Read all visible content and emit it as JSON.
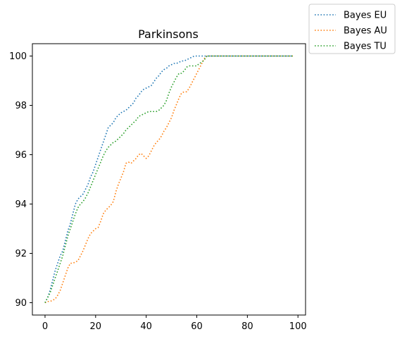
{
  "chart_data": {
    "type": "line",
    "title": "Parkinsons",
    "xlabel": "",
    "ylabel": "",
    "xlim": [
      -5,
      103
    ],
    "ylim": [
      89.5,
      100.5
    ],
    "xticks": [
      0,
      20,
      40,
      60,
      80,
      100
    ],
    "yticks": [
      90,
      92,
      94,
      96,
      98,
      100
    ],
    "grid": false,
    "legend_position": "outside top-right",
    "line_style": "dotted",
    "series": [
      {
        "name": "Bayes EU",
        "color": "#1f77b4",
        "x": [
          0,
          1,
          2,
          3,
          4,
          5,
          6,
          7,
          8,
          9,
          10,
          11,
          12,
          13,
          14,
          15,
          16,
          17,
          18,
          19,
          20,
          21,
          22,
          23,
          24,
          25,
          26,
          27,
          28,
          29,
          30,
          31,
          32,
          33,
          34,
          35,
          36,
          37,
          38,
          39,
          40,
          41,
          42,
          43,
          44,
          45,
          46,
          47,
          48,
          49,
          50,
          51,
          52,
          53,
          54,
          55,
          56,
          57,
          58,
          59,
          60,
          61,
          62,
          63,
          64,
          70,
          80,
          90,
          98
        ],
        "y": [
          90.0,
          90.2,
          90.5,
          90.9,
          91.3,
          91.6,
          91.9,
          92.1,
          92.5,
          92.9,
          93.2,
          93.6,
          94.0,
          94.2,
          94.3,
          94.4,
          94.6,
          94.8,
          95.1,
          95.3,
          95.6,
          95.9,
          96.2,
          96.5,
          96.8,
          97.1,
          97.2,
          97.3,
          97.5,
          97.6,
          97.7,
          97.75,
          97.8,
          97.9,
          98.0,
          98.1,
          98.3,
          98.4,
          98.55,
          98.65,
          98.7,
          98.75,
          98.8,
          98.95,
          99.1,
          99.2,
          99.35,
          99.45,
          99.5,
          99.6,
          99.65,
          99.7,
          99.7,
          99.75,
          99.8,
          99.8,
          99.85,
          99.9,
          99.95,
          100.0,
          100.0,
          100.0,
          100.0,
          100.0,
          100.0,
          100.0,
          100.0,
          100.0,
          100.0
        ]
      },
      {
        "name": "Bayes AU",
        "color": "#ff7f0e",
        "x": [
          0,
          1,
          2,
          3,
          4,
          5,
          6,
          7,
          8,
          9,
          10,
          11,
          12,
          13,
          14,
          15,
          16,
          17,
          18,
          19,
          20,
          21,
          22,
          23,
          24,
          25,
          26,
          27,
          28,
          29,
          30,
          31,
          32,
          33,
          34,
          35,
          36,
          37,
          38,
          39,
          40,
          41,
          42,
          43,
          44,
          45,
          46,
          47,
          48,
          49,
          50,
          51,
          52,
          53,
          54,
          55,
          56,
          57,
          58,
          59,
          60,
          61,
          62,
          63,
          64,
          70,
          80,
          90,
          98
        ],
        "y": [
          90.0,
          90.05,
          90.05,
          90.1,
          90.15,
          90.3,
          90.5,
          90.8,
          91.1,
          91.4,
          91.6,
          91.6,
          91.65,
          91.7,
          91.9,
          92.1,
          92.35,
          92.6,
          92.8,
          92.9,
          93.0,
          93.05,
          93.3,
          93.6,
          93.75,
          93.85,
          93.95,
          94.1,
          94.5,
          94.8,
          95.05,
          95.3,
          95.65,
          95.7,
          95.65,
          95.75,
          95.85,
          96.0,
          96.05,
          95.95,
          95.85,
          95.95,
          96.15,
          96.35,
          96.5,
          96.6,
          96.75,
          96.95,
          97.1,
          97.3,
          97.5,
          97.8,
          98.05,
          98.3,
          98.5,
          98.55,
          98.55,
          98.7,
          98.9,
          99.1,
          99.3,
          99.5,
          99.7,
          99.9,
          100.0,
          100.0,
          100.0,
          100.0,
          100.0
        ]
      },
      {
        "name": "Bayes TU",
        "color": "#2ca02c",
        "x": [
          0,
          1,
          2,
          3,
          4,
          5,
          6,
          7,
          8,
          9,
          10,
          11,
          12,
          13,
          14,
          15,
          16,
          17,
          18,
          19,
          20,
          21,
          22,
          23,
          24,
          25,
          26,
          27,
          28,
          29,
          30,
          31,
          32,
          33,
          34,
          35,
          36,
          37,
          38,
          39,
          40,
          41,
          42,
          43,
          44,
          45,
          46,
          47,
          48,
          49,
          50,
          51,
          52,
          53,
          54,
          55,
          56,
          57,
          58,
          59,
          60,
          61,
          62,
          63,
          64,
          70,
          80,
          90,
          98
        ],
        "y": [
          90.0,
          90.2,
          90.4,
          90.7,
          91.0,
          91.3,
          91.6,
          91.9,
          92.3,
          92.7,
          93.0,
          93.3,
          93.6,
          93.85,
          94.0,
          94.1,
          94.25,
          94.45,
          94.7,
          94.95,
          95.2,
          95.45,
          95.7,
          95.95,
          96.15,
          96.3,
          96.4,
          96.5,
          96.55,
          96.65,
          96.75,
          96.85,
          97.0,
          97.1,
          97.2,
          97.3,
          97.4,
          97.55,
          97.6,
          97.65,
          97.7,
          97.75,
          97.75,
          97.75,
          97.75,
          97.8,
          97.9,
          98.0,
          98.2,
          98.5,
          98.75,
          98.95,
          99.15,
          99.3,
          99.3,
          99.4,
          99.55,
          99.6,
          99.6,
          99.6,
          99.6,
          99.7,
          99.75,
          99.85,
          100.0,
          100.0,
          100.0,
          100.0,
          100.0
        ]
      }
    ]
  }
}
